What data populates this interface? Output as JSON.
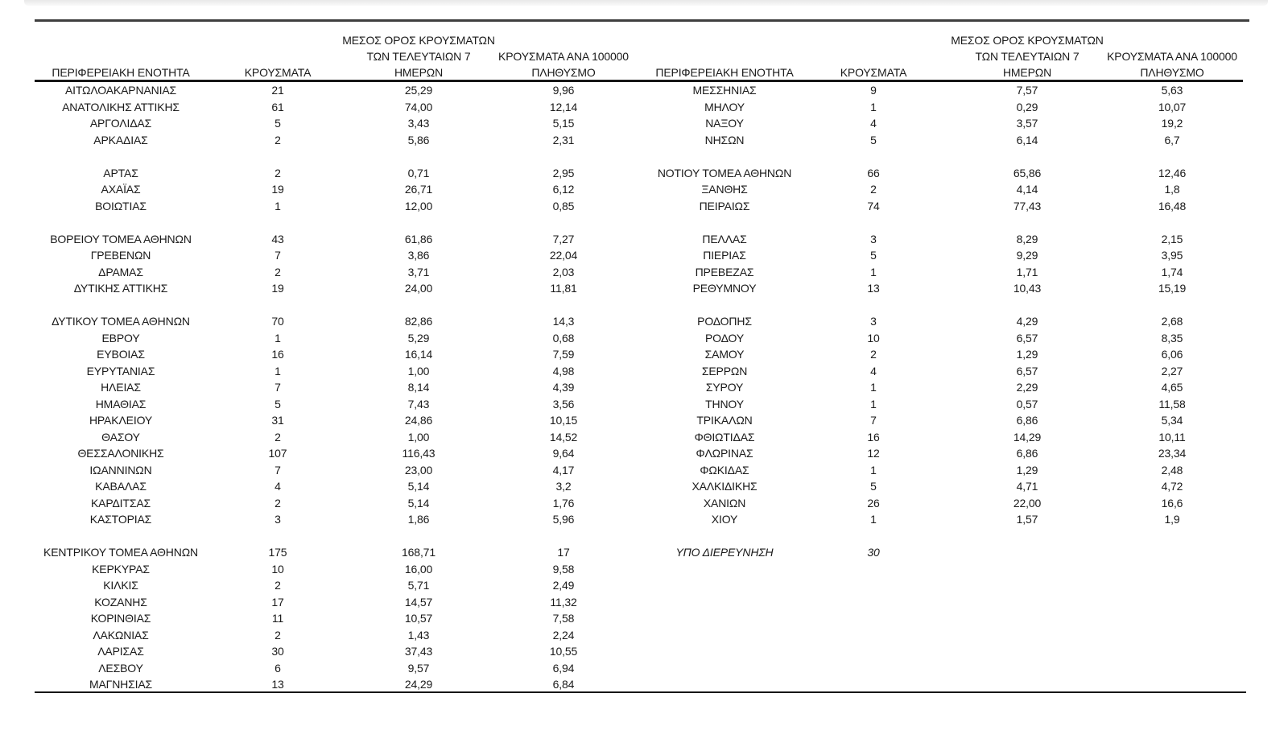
{
  "document": {
    "column_headers": {
      "region": "ΠΕΡΙΦΕΡΕΙΑΚΗ ΕΝΟΤΗΤΑ",
      "cases": "ΚΡΟΥΣΜΑΤΑ",
      "avg_line1": "ΜΕΣΟΣ ΟΡΟΣ ΚΡΟΥΣΜΑΤΩΝ",
      "avg_line2": "ΤΩΝ ΤΕΛΕΥΤΑΙΩΝ 7",
      "avg_line3": "ΗΜΕΡΩΝ",
      "per100k_line1": "ΚΡΟΥΣΜΑΤΑ ΑΝΑ 100000",
      "per100k_line2": "ΠΛΗΘΥΣΜΟ"
    },
    "tables": [
      {
        "side": "left",
        "rows": [
          [
            "ΑΙΤΩΛΟΑΚΑΡΝΑΝΙΑΣ",
            "21",
            "25,29",
            "9,96"
          ],
          [
            "ΑΝΑΤΟΛΙΚΗΣ ΑΤΤΙΚΗΣ",
            "61",
            "74,00",
            "12,14"
          ],
          [
            "ΑΡΓΟΛΙΔΑΣ",
            "5",
            "3,43",
            "5,15"
          ],
          [
            "ΑΡΚΑΔΙΑΣ",
            "2",
            "5,86",
            "2,31"
          ],
          null,
          [
            "ΑΡΤΑΣ",
            "2",
            "0,71",
            "2,95"
          ],
          [
            "ΑΧΑΪΑΣ",
            "19",
            "26,71",
            "6,12"
          ],
          [
            "ΒΟΙΩΤΙΑΣ",
            "1",
            "12,00",
            "0,85"
          ],
          null,
          [
            "ΒΟΡΕΙΟΥ ΤΟΜΕΑ ΑΘΗΝΩΝ",
            "43",
            "61,86",
            "7,27"
          ],
          [
            "ΓΡΕΒΕΝΩΝ",
            "7",
            "3,86",
            "22,04"
          ],
          [
            "ΔΡΑΜΑΣ",
            "2",
            "3,71",
            "2,03"
          ],
          [
            "ΔΥΤΙΚΗΣ ΑΤΤΙΚΗΣ",
            "19",
            "24,00",
            "11,81"
          ],
          null,
          [
            "ΔΥΤΙΚΟΥ ΤΟΜΕΑ ΑΘΗΝΩΝ",
            "70",
            "82,86",
            "14,3"
          ],
          [
            "ΕΒΡΟΥ",
            "1",
            "5,29",
            "0,68"
          ],
          [
            "ΕΥΒΟΙΑΣ",
            "16",
            "16,14",
            "7,59"
          ],
          [
            "ΕΥΡΥΤΑΝΙΑΣ",
            "1",
            "1,00",
            "4,98"
          ],
          [
            "ΗΛΕΙΑΣ",
            "7",
            "8,14",
            "4,39"
          ],
          [
            "ΗΜΑΘΙΑΣ",
            "5",
            "7,43",
            "3,56"
          ],
          [
            "ΗΡΑΚΛΕΙΟΥ",
            "31",
            "24,86",
            "10,15"
          ],
          [
            "ΘΑΣΟΥ",
            "2",
            "1,00",
            "14,52"
          ],
          [
            "ΘΕΣΣΑΛΟΝΙΚΗΣ",
            "107",
            "116,43",
            "9,64"
          ],
          [
            "ΙΩΑΝΝΙΝΩΝ",
            "7",
            "23,00",
            "4,17"
          ],
          [
            "ΚΑΒΑΛΑΣ",
            "4",
            "5,14",
            "3,2"
          ],
          [
            "ΚΑΡΔΙΤΣΑΣ",
            "2",
            "5,14",
            "1,76"
          ],
          [
            "ΚΑΣΤΟΡΙΑΣ",
            "3",
            "1,86",
            "5,96"
          ],
          null,
          [
            "ΚΕΝΤΡΙΚΟΥ ΤΟΜΕΑ ΑΘΗΝΩΝ",
            "175",
            "168,71",
            "17"
          ],
          [
            "ΚΕΡΚΥΡΑΣ",
            "10",
            "16,00",
            "9,58"
          ],
          [
            "ΚΙΛΚΙΣ",
            "2",
            "5,71",
            "2,49"
          ],
          [
            "ΚΟΖΑΝΗΣ",
            "17",
            "14,57",
            "11,32"
          ],
          [
            "ΚΟΡΙΝΘΙΑΣ",
            "11",
            "10,57",
            "7,58"
          ],
          [
            "ΛΑΚΩΝΙΑΣ",
            "2",
            "1,43",
            "2,24"
          ],
          [
            "ΛΑΡΙΣΑΣ",
            "30",
            "37,43",
            "10,55"
          ],
          [
            "ΛΕΣΒΟΥ",
            "6",
            "9,57",
            "6,94"
          ],
          [
            "ΜΑΓΝΗΣΙΑΣ",
            "13",
            "24,29",
            "6,84"
          ]
        ]
      },
      {
        "side": "right",
        "rows": [
          [
            "ΜΕΣΣΗΝΙΑΣ",
            "9",
            "7,57",
            "5,63"
          ],
          [
            "ΜΗΛΟΥ",
            "1",
            "0,29",
            "10,07"
          ],
          [
            "ΝΑΞΟΥ",
            "4",
            "3,57",
            "19,2"
          ],
          [
            "ΝΗΣΩΝ",
            "5",
            "6,14",
            "6,7"
          ],
          null,
          [
            "ΝΟΤΙΟΥ ΤΟΜΕΑ ΑΘΗΝΩΝ",
            "66",
            "65,86",
            "12,46"
          ],
          [
            "ΞΑΝΘΗΣ",
            "2",
            "4,14",
            "1,8"
          ],
          [
            "ΠΕΙΡΑΙΩΣ",
            "74",
            "77,43",
            "16,48"
          ],
          null,
          [
            "ΠΕΛΛΑΣ",
            "3",
            "8,29",
            "2,15"
          ],
          [
            "ΠΙΕΡΙΑΣ",
            "5",
            "9,29",
            "3,95"
          ],
          [
            "ΠΡΕΒΕΖΑΣ",
            "1",
            "1,71",
            "1,74"
          ],
          [
            "ΡΕΘΥΜΝΟΥ",
            "13",
            "10,43",
            "15,19"
          ],
          null,
          [
            "ΡΟΔΟΠΗΣ",
            "3",
            "4,29",
            "2,68"
          ],
          [
            "ΡΟΔΟΥ",
            "10",
            "6,57",
            "8,35"
          ],
          [
            "ΣΑΜΟΥ",
            "2",
            "1,29",
            "6,06"
          ],
          [
            "ΣΕΡΡΩΝ",
            "4",
            "6,57",
            "2,27"
          ],
          [
            "ΣΥΡΟΥ",
            "1",
            "2,29",
            "4,65"
          ],
          [
            "ΤΗΝΟΥ",
            "1",
            "0,57",
            "11,58"
          ],
          [
            "ΤΡΙΚΑΛΩΝ",
            "7",
            "6,86",
            "5,34"
          ],
          [
            "ΦΘΙΩΤΙΔΑΣ",
            "16",
            "14,29",
            "10,11"
          ],
          [
            "ΦΛΩΡΙΝΑΣ",
            "12",
            "6,86",
            "23,34"
          ],
          [
            "ΦΩΚΙΔΑΣ",
            "1",
            "1,29",
            "2,48"
          ],
          [
            "ΧΑΛΚΙΔΙΚΗΣ",
            "5",
            "4,71",
            "4,72"
          ],
          [
            "ΧΑΝΙΩΝ",
            "26",
            "22,00",
            "16,6"
          ],
          [
            "ΧΙΟΥ",
            "1",
            "1,57",
            "1,9"
          ],
          null,
          {
            "cells": [
              "ΥΠΟ ΔΙΕΡΕΥΝΗΣΗ",
              "30",
              "",
              ""
            ],
            "italic": true
          }
        ]
      }
    ]
  }
}
